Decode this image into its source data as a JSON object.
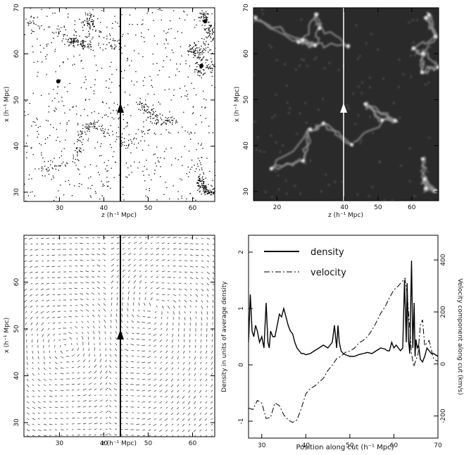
{
  "chart_data": [
    {
      "panel": "top-left",
      "type": "scatter",
      "xlabel": "z (h⁻¹ Mpc)",
      "ylabel": "x (h⁻¹ Mpc)",
      "xticks": [
        "30",
        "40",
        "50",
        "60"
      ],
      "yticks": [
        "30",
        "40",
        "50",
        "60",
        "70"
      ],
      "xlim": [
        22,
        65
      ],
      "ylim": [
        28,
        70
      ],
      "cut_x": 44,
      "arrow_y": 47
    },
    {
      "panel": "top-right",
      "type": "heatmap",
      "xlabel": "z (h⁻¹ Mpc)",
      "ylabel": "x (h⁻¹ Mpc)",
      "xticks": [
        "20",
        "40",
        "50",
        "60"
      ],
      "yticks": [
        "30",
        "40",
        "50",
        "60",
        "70"
      ],
      "xlim": [
        13,
        68
      ],
      "ylim": [
        28,
        70
      ],
      "cut_x": 45,
      "arrow_y": 48
    },
    {
      "panel": "bottom-left",
      "type": "scatter",
      "xlabel": "z (h⁻¹ Mpc)",
      "ylabel": "x (h⁻¹ Mpc)",
      "xticks": [
        "30",
        "40",
        "50",
        "60"
      ],
      "yticks": [
        "30",
        "40",
        "50",
        "60"
      ],
      "xlim": [
        22,
        65
      ],
      "ylim": [
        27,
        70
      ],
      "cut_x": 44,
      "arrow_y": 47
    },
    {
      "panel": "bottom-right",
      "type": "line",
      "xlabel": "Position along cut (h⁻¹ Mpc)",
      "ylabel": "Density in units of average density",
      "ylabel_right": "Velocity component along cut (km/s)",
      "xticks": [
        "30",
        "40",
        "50",
        "60",
        "70"
      ],
      "yticks_left": [
        "-1",
        "0",
        "1",
        "2"
      ],
      "yticks_right": [
        "-200",
        "0",
        "200",
        "400"
      ],
      "xlim": [
        27,
        70
      ],
      "ylim": [
        -1.3,
        2.3
      ],
      "ylim_right": [
        -285,
        495
      ],
      "legend": "top-left",
      "series": [
        {
          "name": "density",
          "style": "solid",
          "x": [
            27.0,
            27.4,
            27.8,
            28.2,
            28.6,
            29.0,
            29.5,
            30.0,
            30.5,
            31.0,
            31.4,
            31.7,
            32.0,
            32.5,
            33.0,
            33.5,
            34.0,
            34.5,
            35.0,
            35.5,
            36.0,
            36.5,
            37.0,
            37.5,
            38.0,
            38.5,
            39.0,
            39.5,
            40.0,
            41.0,
            42.0,
            43.0,
            44.0,
            45.0,
            46.0,
            46.5,
            47.0,
            47.3,
            47.6,
            48.0,
            48.5,
            49.0,
            50.0,
            51.0,
            52.0,
            53.0,
            54.0,
            55.0,
            56.0,
            57.0,
            58.0,
            58.5,
            59.0,
            59.5,
            60.0,
            60.5,
            61.0,
            61.5,
            62.0,
            62.4,
            62.8,
            63.0,
            63.3,
            63.6,
            64.0,
            64.3,
            64.6,
            64.8,
            65.0,
            65.3,
            65.6,
            66.0,
            66.5,
            67.0,
            67.5,
            68.0,
            68.5,
            69.0,
            70.0
          ],
          "values": [
            0.4,
            1.25,
            0.6,
            0.5,
            0.7,
            0.6,
            0.4,
            0.5,
            0.3,
            1.1,
            0.4,
            0.3,
            0.6,
            0.5,
            0.5,
            0.7,
            0.9,
            0.85,
            1.0,
            0.85,
            0.7,
            0.6,
            0.55,
            0.4,
            0.3,
            0.25,
            0.2,
            0.2,
            0.18,
            0.2,
            0.25,
            0.3,
            0.35,
            0.3,
            0.4,
            0.7,
            0.3,
            0.7,
            0.4,
            0.25,
            0.2,
            0.18,
            0.15,
            0.15,
            0.18,
            0.2,
            0.22,
            0.2,
            0.25,
            0.3,
            0.28,
            0.25,
            0.25,
            0.4,
            0.3,
            0.35,
            0.3,
            0.25,
            0.3,
            1.5,
            0.4,
            1.45,
            0.45,
            0.2,
            1.85,
            0.3,
            1.1,
            0.15,
            0.45,
            0.3,
            0.35,
            0.1,
            0.05,
            0.15,
            0.3,
            0.25,
            0.2,
            0.2,
            0.15
          ],
          "axis": "left"
        },
        {
          "name": "velocity",
          "style": "dashdot",
          "x": [
            27.0,
            28.0,
            29.0,
            30.0,
            31.0,
            32.0,
            33.0,
            34.0,
            35.0,
            36.0,
            37.0,
            38.0,
            39.0,
            40.0,
            41.0,
            42.0,
            43.0,
            44.0,
            45.0,
            46.0,
            47.0,
            48.0,
            49.0,
            50.0,
            51.0,
            52.0,
            53.0,
            54.0,
            55.0,
            56.0,
            57.0,
            58.0,
            59.0,
            60.0,
            61.0,
            61.5,
            62.0,
            62.5,
            63.0,
            63.5,
            64.0,
            64.5,
            65.0,
            65.5,
            66.0,
            66.5,
            67.0,
            68.0,
            69.0,
            70.0
          ],
          "values": [
            -170,
            -175,
            -140,
            -150,
            -210,
            -205,
            -150,
            -160,
            -195,
            -215,
            -225,
            -215,
            -170,
            -115,
            -95,
            -85,
            -70,
            -55,
            -25,
            -5,
            20,
            30,
            45,
            50,
            60,
            80,
            90,
            105,
            130,
            160,
            195,
            220,
            255,
            285,
            300,
            310,
            320,
            330,
            270,
            160,
            40,
            -10,
            15,
            40,
            150,
            170,
            70,
            90,
            20,
            10
          ],
          "axis": "right"
        }
      ]
    }
  ]
}
